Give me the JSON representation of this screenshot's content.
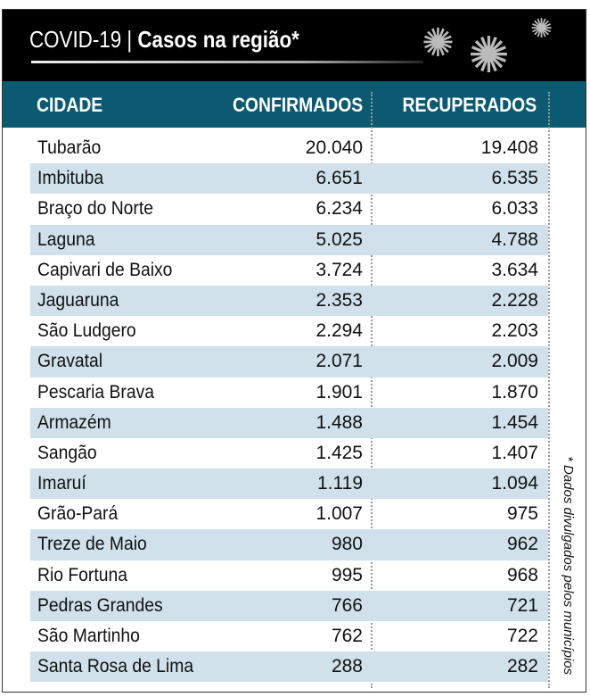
{
  "header": {
    "title_prefix": "COVID-19 | ",
    "title_bold": "Casos na região*"
  },
  "icons": [
    "virus-icon",
    "virus-icon",
    "virus-icon"
  ],
  "columns": [
    "CIDADE",
    "CONFIRMADOS",
    "RECUPERADOS"
  ],
  "rows": [
    [
      "Tubarão",
      "20.040",
      "19.408"
    ],
    [
      "Imbituba",
      "6.651",
      "6.535"
    ],
    [
      "Braço do Norte",
      "6.234",
      "6.033"
    ],
    [
      "Laguna",
      "5.025",
      "4.788"
    ],
    [
      "Capivari de Baixo",
      "3.724",
      "3.634"
    ],
    [
      "Jaguaruna",
      "2.353",
      "2.228"
    ],
    [
      "São Ludgero",
      "2.294",
      "2.203"
    ],
    [
      "Gravatal",
      "2.071",
      "2.009"
    ],
    [
      "Pescaria Brava",
      "1.901",
      "1.870"
    ],
    [
      "Armazém",
      "1.488",
      "1.454"
    ],
    [
      "Sangão",
      "1.425",
      "1.407"
    ],
    [
      "Imaruí",
      "1.119",
      "1.094"
    ],
    [
      "Grão-Pará",
      "1.007",
      "975"
    ],
    [
      "Treze de Maio",
      "980",
      "962"
    ],
    [
      "Rio Fortuna",
      "995",
      "968"
    ],
    [
      "Pedras Grandes",
      "766",
      "721"
    ],
    [
      "São Martinho",
      "762",
      "722"
    ],
    [
      "Santa Rosa de Lima",
      "288",
      "282"
    ]
  ],
  "footnote": "* Dados divulgados pelos municípios",
  "colors": {
    "header_bg": "#000000",
    "table_header": "#0b5a72",
    "stripe": "#d0e1eb"
  }
}
